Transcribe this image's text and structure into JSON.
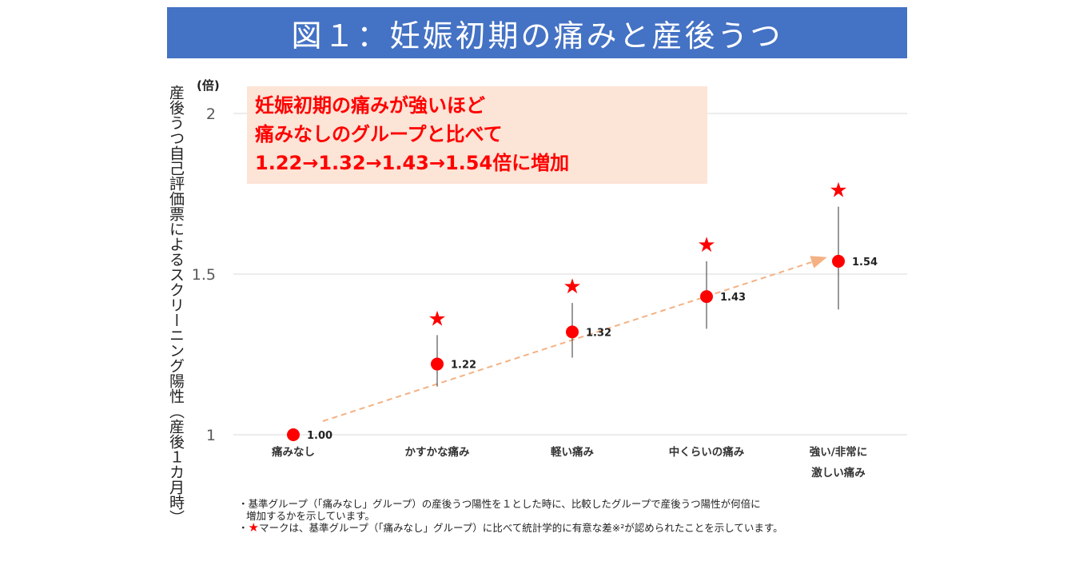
{
  "title": "図１：妊娠初期の痛みと産後うつ",
  "y_axis_title": "産後うつ自己評価票によるスクリーニング陽性（産後１カ月時）",
  "y_unit": "(倍)",
  "callout": {
    "line1": "妊娠初期の痛みが強いほど",
    "line2": "痛みなしのグループと比べて",
    "line3": "1.22→1.32→1.43→1.54倍に増加"
  },
  "notes": {
    "note1_line1": "・基準グループ（「痛みなし」グループ）の産後うつ陽性を１とした時に、比較したグループで産後うつ陽性が何倍に",
    "note1_line2": "増加するかを示しています。",
    "note2_bullet": "・",
    "note2_star": "★",
    "note2_text": "マークは、基準グループ（「痛みなし」グループ）に比べて統計学的に有意な差※²が認められたことを示しています。"
  },
  "colors": {
    "title_bg": "#4472c4",
    "marker": "#ff0000",
    "trend_arrow": "#f4b183",
    "callout_bg": "#fce4d6",
    "grid": "#d9d9d9"
  },
  "chart_data": {
    "type": "scatter",
    "categories": [
      "痛みなし",
      "かすかな痛み",
      "軽い痛み",
      "中くらいの痛み",
      "強い/非常に\n激しい痛み"
    ],
    "values": [
      1.0,
      1.22,
      1.32,
      1.43,
      1.54
    ],
    "value_labels": [
      "1.00",
      "1.22",
      "1.32",
      "1.43",
      "1.54"
    ],
    "ci_lower": [
      null,
      1.15,
      1.24,
      1.33,
      1.39
    ],
    "ci_upper": [
      null,
      1.31,
      1.41,
      1.54,
      1.71
    ],
    "significant": [
      false,
      true,
      true,
      true,
      true
    ],
    "significance_marker": "★",
    "ylim": [
      1,
      2
    ],
    "yticks": [
      1,
      1.5,
      2
    ],
    "ytick_labels": [
      "1",
      "1.5",
      "2"
    ],
    "grid": true,
    "trend_arrow": true,
    "marker_icon": "circle"
  }
}
